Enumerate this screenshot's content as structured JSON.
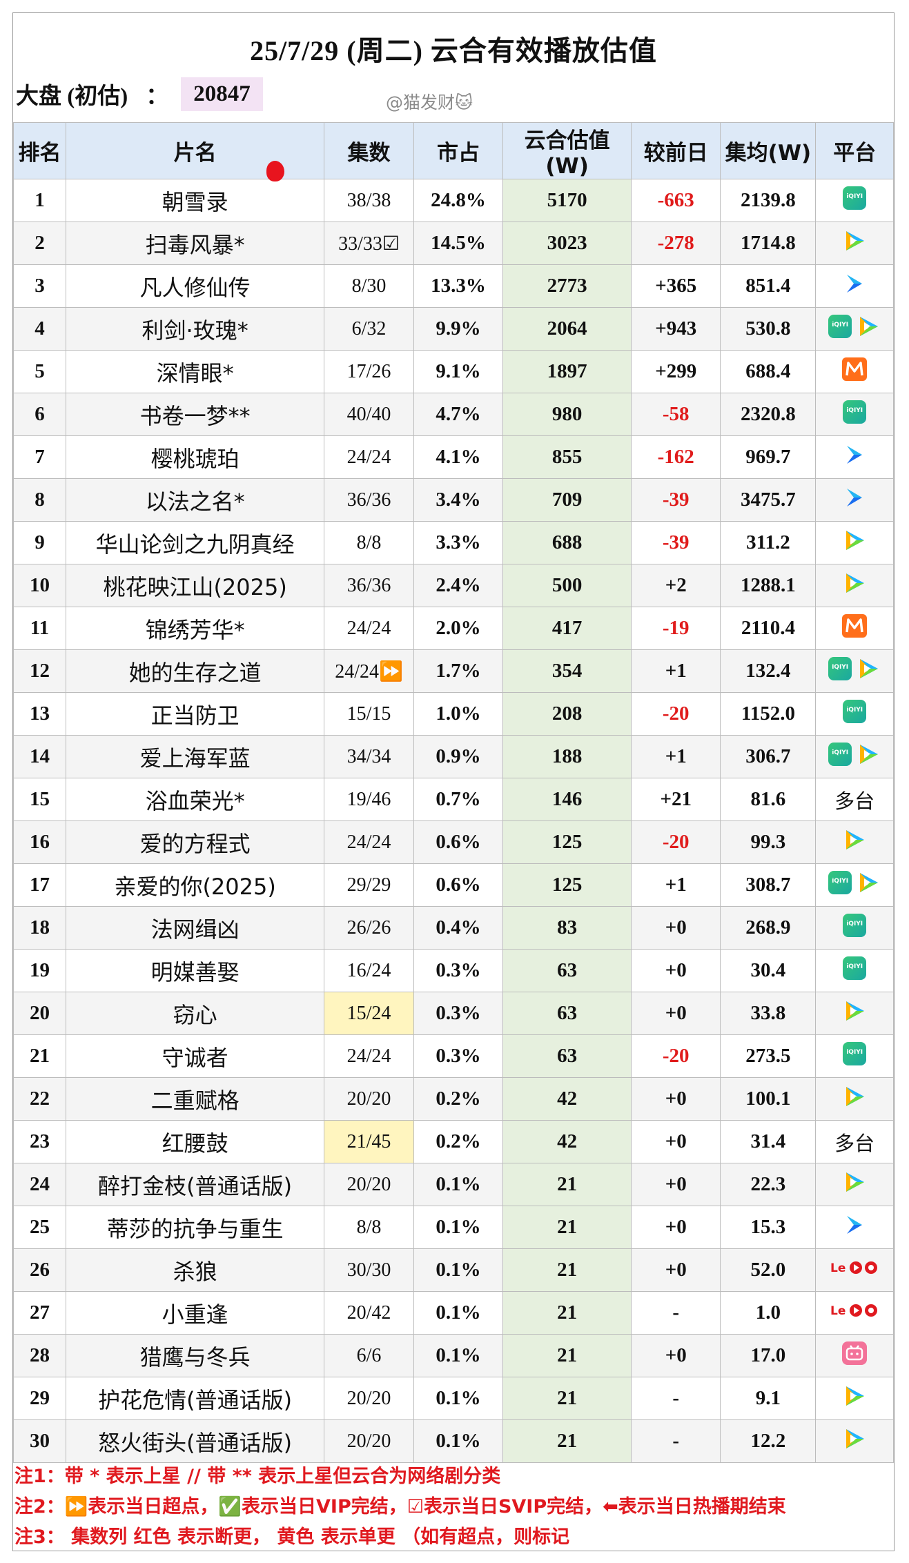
{
  "title": "25/7/29 (周二) 云合有效播放估值",
  "market": {
    "label": "大盘 (初估)",
    "colon": "：",
    "value": "20847"
  },
  "watermark": "@猫发财🐱",
  "headers": [
    "排名",
    "片名",
    "集数",
    "市占",
    "云合估值(W)",
    "较前日",
    "集均(W)",
    "平台"
  ],
  "rows": [
    {
      "rank": "1",
      "name": "朝雪录",
      "eps": "38/38",
      "share": "24.8%",
      "est": "5170",
      "delta": "-663",
      "avg": "2139.8",
      "platform": [
        "iqiyi"
      ]
    },
    {
      "rank": "2",
      "name": "扫毒风暴*",
      "eps": "33/33☑",
      "share": "14.5%",
      "est": "3023",
      "delta": "-278",
      "avg": "1714.8",
      "platform": [
        "tencent"
      ]
    },
    {
      "rank": "3",
      "name": "凡人修仙传",
      "eps": "8/30",
      "share": "13.3%",
      "est": "2773",
      "delta": "+365",
      "avg": "851.4",
      "platform": [
        "youku"
      ]
    },
    {
      "rank": "4",
      "name": "利剑·玫瑰*",
      "eps": "6/32",
      "share": "9.9%",
      "est": "2064",
      "delta": "+943",
      "avg": "530.8",
      "platform": [
        "iqiyi",
        "tencent"
      ]
    },
    {
      "rank": "5",
      "name": "深情眼*",
      "eps": "17/26",
      "share": "9.1%",
      "est": "1897",
      "delta": "+299",
      "avg": "688.4",
      "platform": [
        "mango"
      ]
    },
    {
      "rank": "6",
      "name": "书卷一梦**",
      "eps": "40/40",
      "share": "4.7%",
      "est": "980",
      "delta": "-58",
      "avg": "2320.8",
      "platform": [
        "iqiyi"
      ]
    },
    {
      "rank": "7",
      "name": "樱桃琥珀",
      "eps": "24/24",
      "share": "4.1%",
      "est": "855",
      "delta": "-162",
      "avg": "969.7",
      "platform": [
        "youku"
      ]
    },
    {
      "rank": "8",
      "name": "以法之名*",
      "eps": "36/36",
      "share": "3.4%",
      "est": "709",
      "delta": "-39",
      "avg": "3475.7",
      "platform": [
        "youku"
      ]
    },
    {
      "rank": "9",
      "name": "华山论剑之九阴真经",
      "eps": "8/8",
      "share": "3.3%",
      "est": "688",
      "delta": "-39",
      "avg": "311.2",
      "platform": [
        "tencent"
      ]
    },
    {
      "rank": "10",
      "name": "桃花映江山(2025)",
      "eps": "36/36",
      "share": "2.4%",
      "est": "500",
      "delta": "+2",
      "avg": "1288.1",
      "platform": [
        "tencent"
      ]
    },
    {
      "rank": "11",
      "name": "锦绣芳华*",
      "eps": "24/24",
      "share": "2.0%",
      "est": "417",
      "delta": "-19",
      "avg": "2110.4",
      "platform": [
        "mango"
      ]
    },
    {
      "rank": "12",
      "name": "她的生存之道",
      "eps": "24/24⏩",
      "share": "1.7%",
      "est": "354",
      "delta": "+1",
      "avg": "132.4",
      "platform": [
        "iqiyi",
        "tencent"
      ]
    },
    {
      "rank": "13",
      "name": "正当防卫",
      "eps": "15/15",
      "share": "1.0%",
      "est": "208",
      "delta": "-20",
      "avg": "1152.0",
      "platform": [
        "iqiyi"
      ]
    },
    {
      "rank": "14",
      "name": "爱上海军蓝",
      "eps": "34/34",
      "share": "0.9%",
      "est": "188",
      "delta": "+1",
      "avg": "306.7",
      "platform": [
        "iqiyi",
        "tencent"
      ]
    },
    {
      "rank": "15",
      "name": "浴血荣光*",
      "eps": "19/46",
      "share": "0.7%",
      "est": "146",
      "delta": "+21",
      "avg": "81.6",
      "platform": [
        "text:多台"
      ]
    },
    {
      "rank": "16",
      "name": "爱的方程式",
      "eps": "24/24",
      "share": "0.6%",
      "est": "125",
      "delta": "-20",
      "avg": "99.3",
      "platform": [
        "tencent"
      ]
    },
    {
      "rank": "17",
      "name": "亲爱的你(2025)",
      "eps": "29/29",
      "share": "0.6%",
      "est": "125",
      "delta": "+1",
      "avg": "308.7",
      "platform": [
        "iqiyi",
        "tencent"
      ]
    },
    {
      "rank": "18",
      "name": "法网缉凶",
      "eps": "26/26",
      "share": "0.4%",
      "est": "83",
      "delta": "+0",
      "avg": "268.9",
      "platform": [
        "iqiyi"
      ]
    },
    {
      "rank": "19",
      "name": "明媒善娶",
      "eps": "16/24",
      "share": "0.3%",
      "est": "63",
      "delta": "+0",
      "avg": "30.4",
      "platform": [
        "iqiyi"
      ]
    },
    {
      "rank": "20",
      "name": "窃心",
      "eps": "15/24",
      "eps_yellow": true,
      "share": "0.3%",
      "est": "63",
      "delta": "+0",
      "avg": "33.8",
      "platform": [
        "tencent"
      ]
    },
    {
      "rank": "21",
      "name": "守诚者",
      "eps": "24/24",
      "share": "0.3%",
      "est": "63",
      "delta": "-20",
      "avg": "273.5",
      "platform": [
        "iqiyi"
      ]
    },
    {
      "rank": "22",
      "name": "二重赋格",
      "eps": "20/20",
      "share": "0.2%",
      "est": "42",
      "delta": "+0",
      "avg": "100.1",
      "platform": [
        "tencent"
      ]
    },
    {
      "rank": "23",
      "name": "红腰鼓",
      "eps": "21/45",
      "eps_yellow": true,
      "share": "0.2%",
      "est": "42",
      "delta": "+0",
      "avg": "31.4",
      "platform": [
        "text:多台"
      ]
    },
    {
      "rank": "24",
      "name": "醉打金枝(普通话版)",
      "eps": "20/20",
      "share": "0.1%",
      "est": "21",
      "delta": "+0",
      "avg": "22.3",
      "platform": [
        "tencent"
      ]
    },
    {
      "rank": "25",
      "name": "蒂莎的抗争与重生",
      "eps": "8/8",
      "share": "0.1%",
      "est": "21",
      "delta": "+0",
      "avg": "15.3",
      "platform": [
        "youku"
      ]
    },
    {
      "rank": "26",
      "name": "杀狼",
      "eps": "30/30",
      "share": "0.1%",
      "est": "21",
      "delta": "+0",
      "avg": "52.0",
      "platform": [
        "le"
      ]
    },
    {
      "rank": "27",
      "name": "小重逢",
      "eps": "20/42",
      "share": "0.1%",
      "est": "21",
      "delta": "-",
      "avg": "1.0",
      "platform": [
        "le"
      ]
    },
    {
      "rank": "28",
      "name": "猎鹰与冬兵",
      "eps": "6/6",
      "share": "0.1%",
      "est": "21",
      "delta": "+0",
      "avg": "17.0",
      "platform": [
        "bilibili"
      ]
    },
    {
      "rank": "29",
      "name": "护花危情(普通话版)",
      "eps": "20/20",
      "share": "0.1%",
      "est": "21",
      "delta": "-",
      "avg": "9.1",
      "platform": [
        "tencent"
      ]
    },
    {
      "rank": "30",
      "name": "怒火街头(普通话版)",
      "eps": "20/20",
      "share": "0.1%",
      "est": "21",
      "delta": "-",
      "avg": "12.2",
      "platform": [
        "tencent"
      ]
    }
  ],
  "notes": [
    "注1：带 * 表示上星 // 带 ** 表示上星但云合为网络剧分类",
    "注2：⏩表示当日超点，✅表示当日VIP完结，☑表示当日SVIP完结，⬅表示当日热播期结束",
    "注3：  集数列  红色  表示断更，  黄色  表示单更 （如有超点，则标记"
  ],
  "colors": {
    "header_bg": "#dde9f7",
    "estimate_bg": "#e6f0de",
    "negative": "#e01b1b",
    "note": "#e0191f",
    "yellow_cell": "#fff5bf",
    "market_bg": "#f3e3f4"
  }
}
